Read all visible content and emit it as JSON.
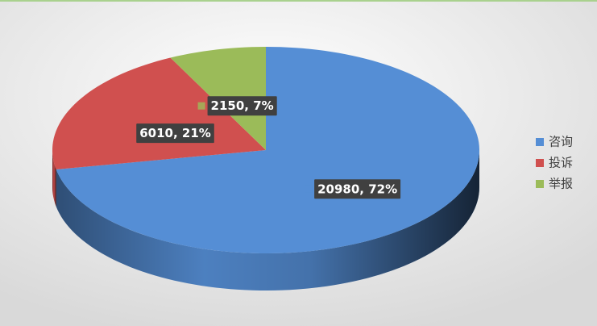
{
  "chart_data": {
    "type": "pie3d",
    "categories": [
      "咨询",
      "投诉",
      "举报"
    ],
    "values": [
      20980,
      6010,
      2150
    ],
    "value_labels": [
      "20980, 72%",
      "6010, 21%",
      "2150, 7%"
    ],
    "colors": [
      "#558ed5",
      "#d0504f",
      "#9bbb59"
    ],
    "legend": "right"
  }
}
